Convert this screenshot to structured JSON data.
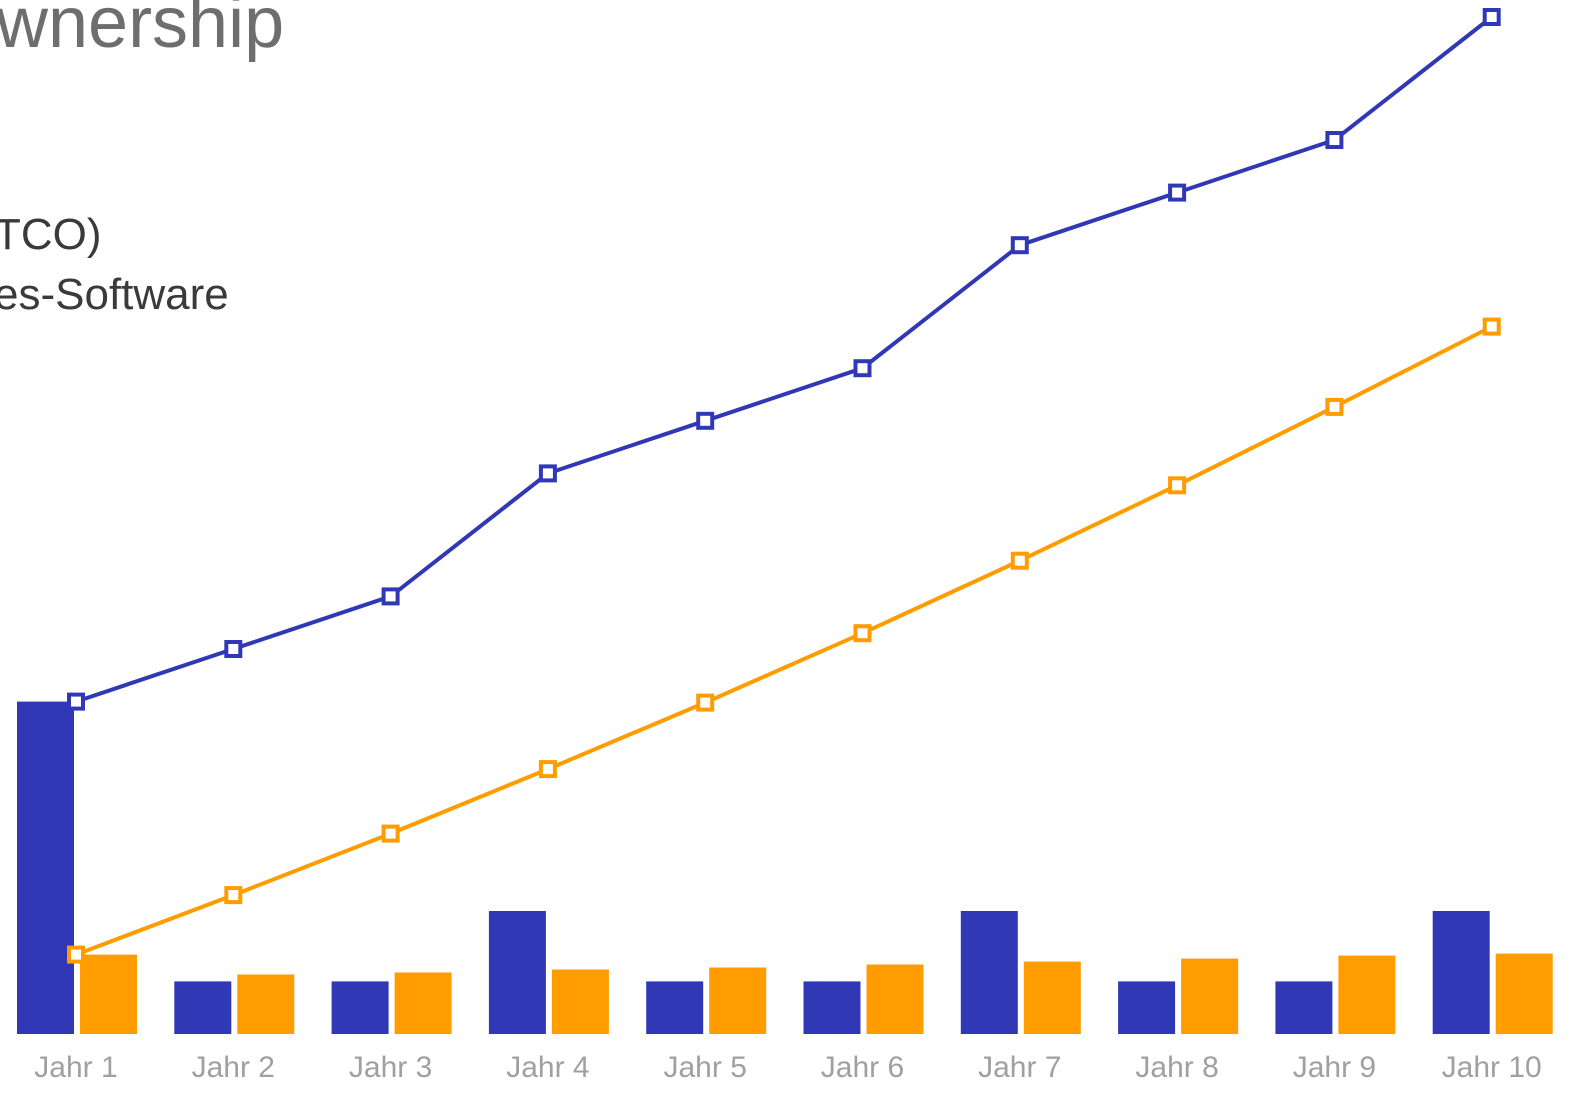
{
  "title_fragment": "wnership",
  "subtitle_fragments": [
    "TCO)",
    "es-Software"
  ],
  "chart_data": {
    "type": "bar",
    "categories": [
      "Jahr 1",
      "Jahr 2",
      "Jahr 3",
      "Jahr 4",
      "Jahr 5",
      "Jahr 6",
      "Jahr 7",
      "Jahr 8",
      "Jahr 9",
      "Jahr 10"
    ],
    "series": [
      {
        "kind": "bar",
        "color": "#3038b5",
        "values": [
          335,
          53,
          53,
          124,
          53,
          53,
          124,
          53,
          53,
          124
        ]
      },
      {
        "kind": "bar",
        "color": "#ff9c00",
        "values": [
          80,
          60,
          62,
          65,
          67,
          70,
          73,
          76,
          79,
          81
        ]
      },
      {
        "kind": "line",
        "color": "#3038b5",
        "values": [
          335,
          388,
          441,
          565,
          618,
          671,
          795,
          848,
          901,
          1025
        ]
      },
      {
        "kind": "line",
        "color": "#ff9c00",
        "values": [
          80,
          140,
          202,
          267,
          334,
          404,
          477,
          553,
          632,
          713
        ]
      }
    ],
    "ylim": [
      0,
      1050
    ],
    "grid": false
  }
}
